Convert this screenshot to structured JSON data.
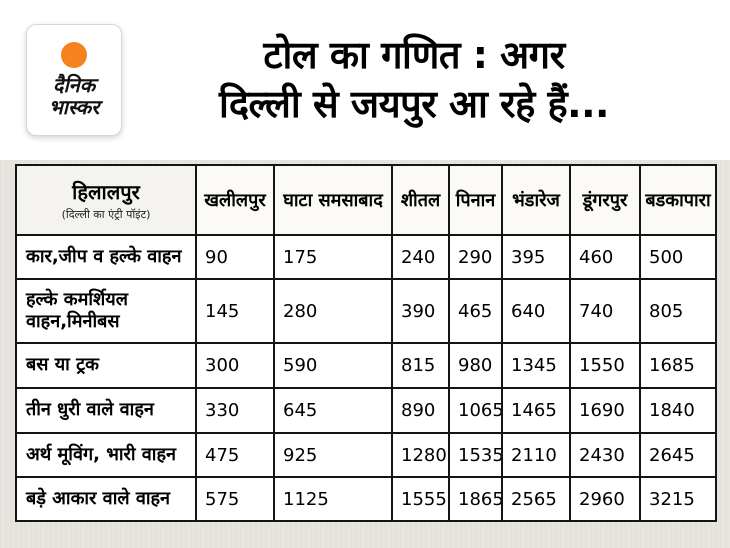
{
  "logo": {
    "line1": "दैनिक",
    "line2": "भास्कर"
  },
  "title": {
    "line1": "टोल का गणित : अगर",
    "line2": "दिल्ली से जयपुर आ रहे हैं..."
  },
  "colors": {
    "logo_orange": "#f5821f",
    "border_black": "#141414",
    "page_bg": "#e7e5e0"
  },
  "chart_data": {
    "type": "table",
    "title": "टोल का गणित : अगर दिल्ली से जयपुर आ रहे हैं...",
    "entry_point_header": "हिलालपुर",
    "entry_point_note": "(दिल्ली का एंट्री पॉइंट)",
    "columns": [
      "खलीलपुर",
      "घाटा समसाबाद",
      "शीतल",
      "पिनान",
      "भंडारेज",
      "डूंगरपुर",
      "बडकापारा"
    ],
    "rows": [
      {
        "label": "कार,जीप व हल्के वाहन",
        "values": [
          90,
          175,
          240,
          290,
          395,
          460,
          500
        ]
      },
      {
        "label": "हल्के कमर्शियल वाहन,मिनीबस",
        "values": [
          145,
          280,
          390,
          465,
          640,
          740,
          805
        ]
      },
      {
        "label": "बस या ट्रक",
        "values": [
          300,
          590,
          815,
          980,
          1345,
          1550,
          1685
        ]
      },
      {
        "label": "तीन धुरी वाले वाहन",
        "values": [
          330,
          645,
          890,
          1065,
          1465,
          1690,
          1840
        ]
      },
      {
        "label": "अर्थ मूविंग, भारी वाहन",
        "values": [
          475,
          925,
          1280,
          1535,
          2110,
          2430,
          2645
        ]
      },
      {
        "label": "बड़े आकार वाले वाहन",
        "values": [
          575,
          1125,
          1555,
          1865,
          2565,
          2960,
          3215
        ]
      }
    ]
  }
}
